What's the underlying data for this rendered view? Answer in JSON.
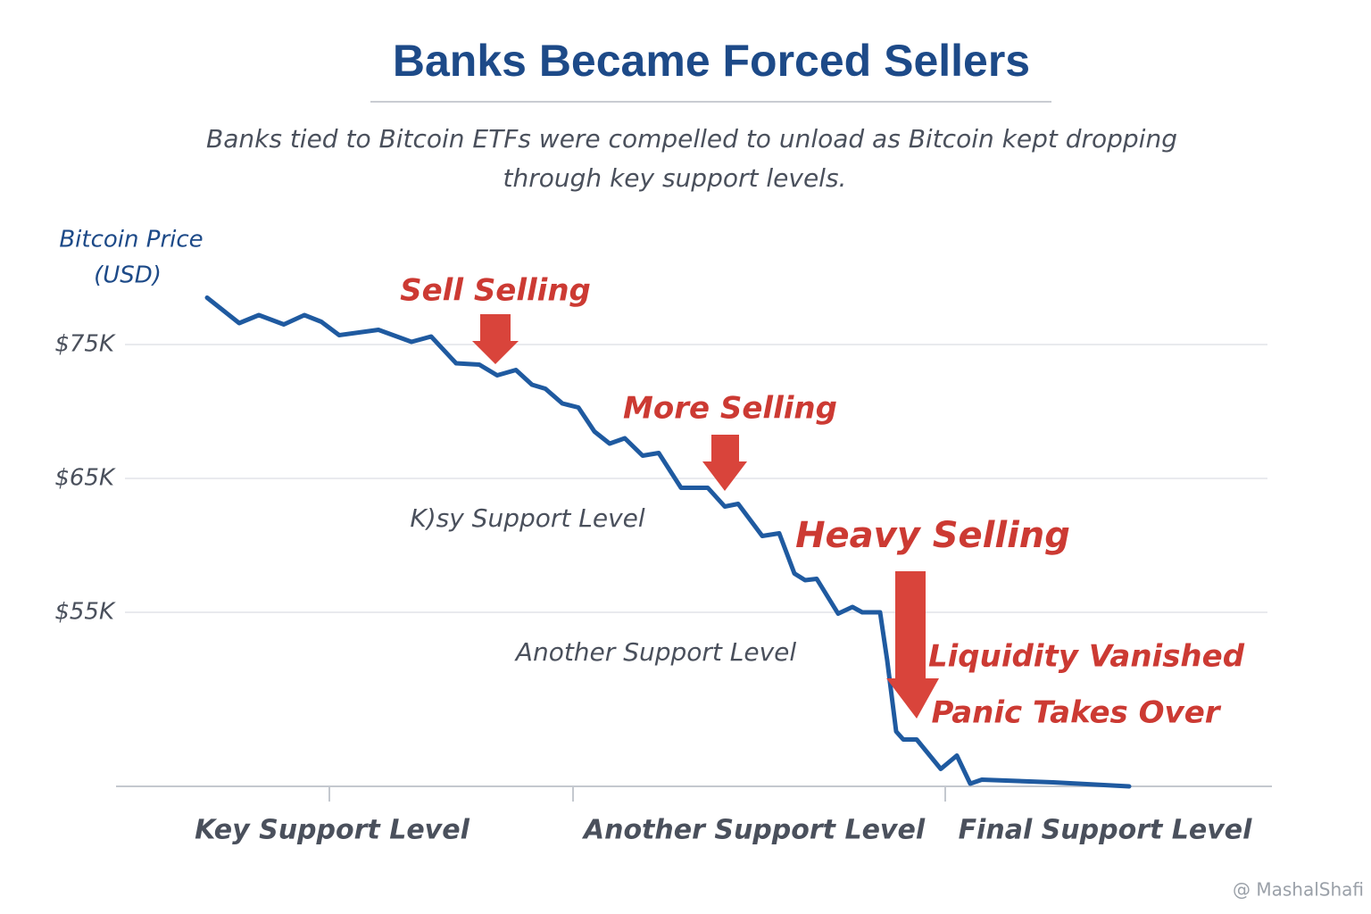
{
  "chart_data": {
    "type": "line",
    "title": "Banks Became Forced Sellers",
    "subtitle": [
      "Banks tied to Bitcoin ETFs were compelled to unload as Bitcoin kept dropping",
      "through key support levels."
    ],
    "y_label": [
      "Bitcoin Price",
      "(USD)"
    ],
    "color": "#1f5aa0",
    "x": [
      10.2,
      13.8,
      16,
      18.8,
      21.1,
      23,
      25,
      29.4,
      33.1,
      35.3,
      38.1,
      40.7,
      42.7,
      44.8,
      46.6,
      48.1,
      50,
      51.8,
      53.6,
      55.3,
      57,
      59,
      60.8,
      63.3,
      66.3,
      68.2,
      69.7,
      72.4,
      74.3,
      76,
      77.2,
      78.5,
      80.9,
      82.5,
      83.6,
      85.6,
      86.4,
      87.4,
      88.2,
      89.7,
      92.4,
      94.2,
      95.7,
      97,
      105,
      113.5
    ],
    "values": [
      78500,
      76600,
      77200,
      76500,
      77200,
      76700,
      75700,
      76100,
      75200,
      75600,
      73600,
      73500,
      72700,
      73100,
      72000,
      71700,
      70600,
      70300,
      68500,
      67600,
      68000,
      66700,
      66900,
      64300,
      64300,
      62900,
      63100,
      60700,
      60900,
      57900,
      57400,
      57500,
      54900,
      55400,
      55000,
      55000,
      51400,
      46100,
      45500,
      45500,
      43300,
      44300,
      42200,
      42500,
      42300,
      42000
    ],
    "xlim": [
      0,
      130
    ],
    "ylim": [
      42000,
      85000
    ],
    "yticks": [
      {
        "value": 55000,
        "label": "$55K"
      },
      {
        "value": 65000,
        "label": "$65K"
      },
      {
        "value": 75000,
        "label": "$75K"
      }
    ],
    "grid": true,
    "annotations": [
      "Sell Selling",
      "More Selling",
      "Heavy Selling",
      "Liquidity Vanished",
      "Panic Takes Over",
      "K)sy Support Level",
      "Another Support Level"
    ],
    "x_labels": [
      "Key Support Level",
      "Another Support Level",
      "Final Support Level"
    ],
    "watermark": "@ MashalShafi"
  }
}
